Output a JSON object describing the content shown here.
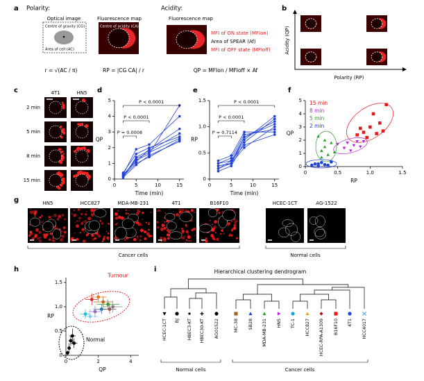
{
  "panel_labels": [
    "a",
    "b",
    "c",
    "d",
    "e",
    "f",
    "g",
    "h",
    "i"
  ],
  "panel_a": {
    "polarity_heading": "Polarity:",
    "acidity_heading": "Acidity:",
    "optical_image": "Optical image",
    "centre_of_gravity": "Centre of gravity (CG)",
    "area_of_cell": "Area of cell (AC)",
    "fluorescence_map_1": "Fluorescence map",
    "centre_of_acidity": "Centre of acidity (CA)",
    "fluorescence_map_2": "Fluorescence map",
    "legend": [
      "MFI of ON state (MFIon)",
      "Area of SPEAR (Af)",
      "MFI of OFF state (MFIoff)"
    ],
    "formulas": [
      "r = √(AC / π)",
      "RP = |CG CA| / r",
      "QP = MFIon / MFIoff × Af"
    ]
  },
  "panel_b": {
    "y_label": "Acidity (QP)",
    "x_label": "Polarity (RP)"
  },
  "panel_c": {
    "columns": [
      "4T1",
      "HN5"
    ],
    "rows": [
      "2 min",
      "5 min",
      "8 min",
      "15 min"
    ]
  },
  "panel_g": {
    "cancer": [
      "HN5",
      "HCC827",
      "MDA-MB-231",
      "4T1",
      "B16F10"
    ],
    "normal": [
      "HCEC-1CT",
      "AG-1522"
    ],
    "cancer_group": "Cancer cells",
    "normal_group": "Normal cells"
  },
  "chart_data": [
    {
      "type": "line",
      "y_label": "QP",
      "x_label": "Time (min)",
      "color": "#1f3fd6",
      "x": [
        2,
        5,
        8,
        15
      ],
      "xlim": [
        0,
        16
      ],
      "xticks": [
        0,
        5,
        10,
        15
      ],
      "ylim": [
        0,
        5
      ],
      "yticks": [
        0,
        1,
        2,
        3,
        4,
        5
      ],
      "annotations": [
        "P < 0.0001",
        "P < 0.0001",
        "P = 0.0008"
      ],
      "series": [
        {
          "values": [
            0.2,
            1.2,
            1.6,
            4.7
          ]
        },
        {
          "values": [
            0.3,
            1.9,
            2.2,
            4.0
          ]
        },
        {
          "values": [
            0.1,
            1.4,
            1.8,
            2.9
          ]
        },
        {
          "values": [
            0.2,
            1.0,
            1.4,
            2.5
          ]
        },
        {
          "values": [
            0.4,
            1.6,
            2.0,
            2.7
          ]
        },
        {
          "values": [
            0.1,
            0.9,
            1.5,
            2.4
          ]
        },
        {
          "values": [
            0.3,
            1.1,
            1.9,
            3.2
          ]
        },
        {
          "values": [
            0.2,
            1.3,
            1.7,
            2.6
          ]
        }
      ]
    },
    {
      "type": "line",
      "y_label": "RP",
      "x_label": "Time (min)",
      "color": "#1f3fd6",
      "x": [
        2,
        5,
        8,
        15
      ],
      "xlim": [
        0,
        16
      ],
      "xticks": [
        0,
        5,
        10,
        15
      ],
      "ylim": [
        0,
        1.5
      ],
      "yticks": [
        0,
        0.5,
        {
          "value": 1,
          "label": "1.0"
        },
        1.5
      ],
      "annotations": [
        "P < 0.0001",
        "P < 0.0001",
        "P = 0.7114"
      ],
      "series": [
        {
          "values": [
            0.25,
            0.3,
            0.75,
            1.2
          ]
        },
        {
          "values": [
            0.2,
            0.35,
            0.8,
            1.1
          ]
        },
        {
          "values": [
            0.3,
            0.4,
            0.85,
            0.95
          ]
        },
        {
          "values": [
            0.2,
            0.3,
            0.6,
            1.0
          ]
        },
        {
          "values": [
            0.35,
            0.45,
            0.9,
            0.9
          ]
        },
        {
          "values": [
            0.15,
            0.25,
            0.7,
            1.15
          ]
        },
        {
          "values": [
            0.3,
            0.35,
            0.65,
            0.85
          ]
        },
        {
          "values": [
            0.25,
            0.3,
            0.8,
            1.05
          ]
        }
      ]
    },
    {
      "type": "scatter",
      "y_label": "QP",
      "x_label": "RP",
      "xlim": [
        0,
        1.5
      ],
      "xticks": [
        0,
        0.5,
        {
          "value": 1,
          "label": "1.0"
        },
        1.5
      ],
      "ylim": [
        0,
        5
      ],
      "yticks": [
        0,
        1,
        2,
        3,
        4,
        5
      ],
      "series": [
        {
          "name": "15 min",
          "color": "#e31a1c",
          "marker": "square",
          "x": [
            0.8,
            0.9,
            1.0,
            1.1,
            1.2,
            1.25,
            0.95,
            1.05,
            1.15,
            0.85
          ],
          "values": [
            2.4,
            2.6,
            3.0,
            2.5,
            2.7,
            4.7,
            2.2,
            4.0,
            3.3,
            2.9
          ]
        },
        {
          "name": "8 min",
          "color": "#b620e0",
          "marker": "triangle-down",
          "x": [
            0.5,
            0.6,
            0.7,
            0.75,
            0.8,
            0.9,
            0.65,
            0.85
          ],
          "values": [
            1.7,
            1.4,
            1.2,
            1.6,
            1.9,
            1.9,
            1.8,
            1.5
          ]
        },
        {
          "name": "5 min",
          "color": "#2ca02c",
          "marker": "triangle",
          "x": [
            0.2,
            0.25,
            0.3,
            0.35,
            0.4,
            0.3,
            0.45,
            0.25
          ],
          "values": [
            2.3,
            1.2,
            1.5,
            0.9,
            1.8,
            2.0,
            1.1,
            0.7
          ]
        },
        {
          "name": "2 min",
          "color": "#1f3fd6",
          "marker": "circle",
          "x": [
            0.1,
            0.15,
            0.2,
            0.25,
            0.3,
            0.35,
            0.4,
            0.2
          ],
          "values": [
            0.1,
            0.2,
            0.05,
            0.3,
            0.15,
            0.1,
            0.35,
            0.2
          ]
        }
      ]
    },
    {
      "type": "errorscatter",
      "y_label": "RP",
      "x_label": "QP",
      "xlim": [
        0,
        4.5
      ],
      "xticks": [
        0,
        2,
        4
      ],
      "ylim": [
        0,
        1.6
      ],
      "yticks": [
        0,
        0.5,
        {
          "value": 1,
          "label": "1.0"
        },
        1.5
      ],
      "annotations": [
        "Tumour",
        "Normal"
      ],
      "series": [
        {
          "colors": [
            "#d62728",
            "#e8731a",
            "#b5651d",
            "#2ca02c",
            "#7f7f7f",
            "#1f77b4",
            "#9467bd",
            "#17becf",
            "#87ceeb",
            "#8c564b"
          ],
          "x": [
            1.6,
            2.0,
            2.3,
            2.6,
            2.9,
            2.2,
            1.8,
            1.2,
            1.5,
            2.7
          ],
          "values": [
            1.15,
            1.2,
            1.1,
            1.05,
            1.0,
            0.95,
            0.9,
            0.85,
            0.8,
            0.95
          ],
          "xerr": [
            0.4,
            0.5,
            0.6,
            0.7,
            0.6,
            0.5,
            0.4,
            0.3,
            0.5,
            0.4
          ],
          "yerr": [
            0.12,
            0.1,
            0.12,
            0.1,
            0.12,
            0.1,
            0.12,
            0.1,
            0.15,
            0.1
          ]
        },
        {
          "color": "#000000",
          "x": [
            0.4,
            0.3,
            0.2,
            0.1,
            0.5
          ],
          "values": [
            0.4,
            0.3,
            0.15,
            0.05,
            0.25
          ],
          "xerr": [
            0.2,
            0.15,
            0.1,
            0.1,
            0.2
          ],
          "yerr": [
            0.15,
            0.1,
            0.1,
            0.05,
            0.1
          ]
        }
      ]
    }
  ],
  "dendrogram": {
    "title": "Hierarchical clustering dendrogram",
    "normal_group": "Normal cells",
    "cancer_group": "Cancer cells",
    "leaves": [
      {
        "label": "HCEC-1CT",
        "marker": "triangle-down",
        "color": "#000000"
      },
      {
        "label": "BJ",
        "marker": "circle",
        "color": "#000000"
      },
      {
        "label": "HBEC3-KT",
        "marker": "star",
        "color": "#000000"
      },
      {
        "label": "HBEC30-KT",
        "marker": "plus",
        "color": "#000000"
      },
      {
        "label": "AG01522",
        "marker": "circle",
        "color": "#000000"
      },
      {
        "label": "MC-38",
        "marker": "square",
        "color": "#a0642a"
      },
      {
        "label": "SB28",
        "marker": "triangle",
        "color": "#1f3fd6"
      },
      {
        "label": "MDA-MB-231",
        "marker": "triangle",
        "color": "#2ca02c"
      },
      {
        "label": "HN5",
        "marker": "triangle-right",
        "color": "#b620e0"
      },
      {
        "label": "TC-1",
        "marker": "circle",
        "color": "#17a2c8"
      },
      {
        "label": "HCC827",
        "marker": "triangle",
        "color": "#e8a01a"
      },
      {
        "label": "HCEC-RPA-A1309",
        "marker": "diamond",
        "color": "#b01010"
      },
      {
        "label": "B16F10",
        "marker": "square",
        "color": "#e31a1c"
      },
      {
        "label": "4T1",
        "marker": "circle",
        "color": "#1f3fd6"
      },
      {
        "label": "HCC4017",
        "marker": "cross",
        "color": "#6fa8dc"
      }
    ]
  }
}
